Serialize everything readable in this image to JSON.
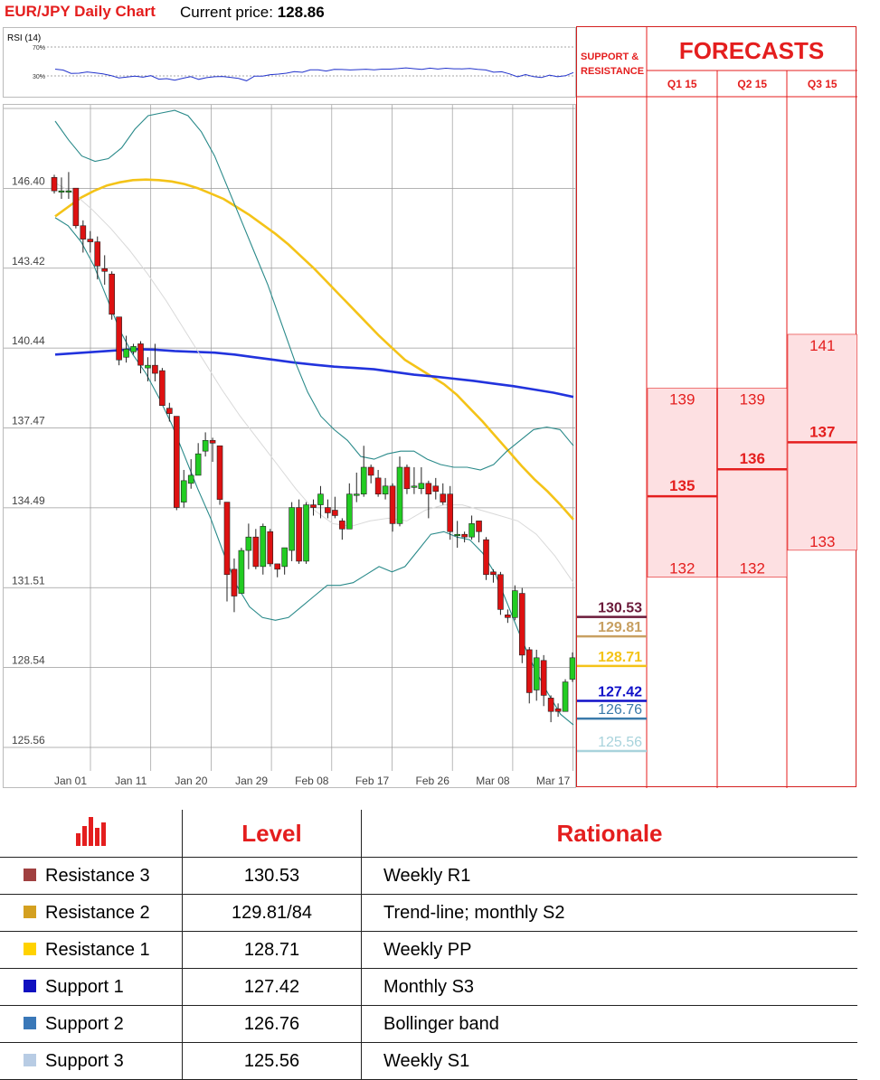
{
  "header": {
    "title": "EUR/JPY Daily Chart",
    "price_label": "Current price:",
    "price_value": "128.86"
  },
  "rsi": {
    "label": "RSI (14)",
    "levels": [
      "70%",
      "30%"
    ],
    "values": [
      39.4,
      38.1,
      33.5,
      33.8,
      35.5,
      34.3,
      32.8,
      30.5,
      27.3,
      28.5,
      29.6,
      28.2,
      30.4,
      25.5,
      26.2,
      24.1,
      26.8,
      29.0,
      25.3,
      27.6,
      28.9,
      29.3,
      28.0,
      26.5,
      23.3,
      29.8,
      29.6,
      31.8,
      32.5,
      33.8,
      35.9,
      35.0,
      38.4,
      38.4,
      36.7,
      39.1,
      38.9,
      38.2,
      38.8,
      39.2,
      38.4,
      39.4,
      39.4,
      40.1,
      41.1,
      40.0,
      39.0,
      40.7,
      39.5,
      40.6,
      39.9,
      39.7,
      40.3,
      39.1,
      38.2,
      35.1,
      35.7,
      32.8,
      28.7,
      31.9,
      29.0,
      27.8,
      31.1,
      28.9,
      30.2,
      34.6
    ]
  },
  "chart_data": {
    "type": "candlestick",
    "ylim": [
      125.56,
      149.37
    ],
    "y_ticks": [
      "149.37",
      "146.40",
      "143.42",
      "140.44",
      "137.47",
      "134.49",
      "131.51",
      "128.54",
      "125.56"
    ],
    "x_ticks": [
      "Jan 01",
      "Jan 11",
      "Jan 20",
      "Jan 29",
      "Feb 08",
      "Feb 17",
      "Feb 26",
      "Mar 08",
      "Mar 17"
    ],
    "grid": true,
    "candles": [
      [
        146.8,
        146.3,
        146.9,
        146.2
      ],
      [
        146.3,
        146.3,
        146.8,
        146.0
      ],
      [
        146.3,
        146.3,
        147.0,
        146.0
      ],
      [
        146.4,
        145.0,
        146.4,
        144.9
      ],
      [
        145.0,
        144.5,
        145.2,
        144.0
      ],
      [
        144.5,
        144.4,
        144.8,
        144.0
      ],
      [
        144.4,
        143.5,
        144.6,
        143.0
      ],
      [
        143.4,
        143.3,
        143.9,
        142.8
      ],
      [
        143.2,
        141.7,
        143.3,
        141.5
      ],
      [
        141.6,
        140.0,
        141.6,
        139.8
      ],
      [
        140.1,
        140.4,
        140.9,
        139.9
      ],
      [
        140.3,
        140.5,
        140.6,
        140.2
      ],
      [
        140.6,
        139.8,
        140.7,
        139.5
      ],
      [
        139.7,
        139.8,
        140.1,
        139.2
      ],
      [
        139.8,
        139.5,
        140.6,
        139.2
      ],
      [
        139.6,
        138.3,
        139.7,
        138.3
      ],
      [
        138.2,
        138.0,
        138.4,
        137.7
      ],
      [
        137.9,
        134.5,
        137.9,
        134.4
      ],
      [
        134.7,
        135.5,
        135.9,
        134.5
      ],
      [
        135.4,
        135.7,
        136.3,
        135.2
      ],
      [
        135.7,
        136.5,
        136.9,
        135.7
      ],
      [
        136.6,
        137.0,
        137.3,
        136.4
      ],
      [
        137.0,
        136.9,
        137.1,
        136.2
      ],
      [
        136.8,
        134.8,
        136.8,
        134.6
      ],
      [
        134.7,
        132.0,
        134.7,
        131.0
      ],
      [
        132.2,
        131.2,
        132.6,
        130.6
      ],
      [
        131.3,
        132.9,
        133.0,
        131.3
      ],
      [
        132.9,
        133.4,
        133.9,
        132.2
      ],
      [
        133.4,
        132.3,
        133.7,
        132.2
      ],
      [
        132.3,
        133.8,
        133.9,
        132.0
      ],
      [
        133.6,
        132.4,
        133.7,
        132.3
      ],
      [
        132.4,
        132.2,
        132.4,
        131.9
      ],
      [
        132.3,
        133.0,
        133.0,
        132.0
      ],
      [
        132.9,
        134.5,
        134.7,
        132.5
      ],
      [
        134.5,
        132.5,
        134.8,
        132.4
      ],
      [
        132.5,
        134.6,
        134.7,
        132.4
      ],
      [
        134.6,
        134.5,
        134.8,
        134.2
      ],
      [
        134.6,
        135.0,
        135.3,
        134.1
      ],
      [
        134.5,
        134.3,
        134.8,
        134.1
      ],
      [
        134.4,
        134.2,
        134.9,
        134.1
      ],
      [
        134.0,
        133.7,
        134.1,
        133.3
      ],
      [
        133.7,
        135.0,
        135.4,
        133.7
      ],
      [
        135.0,
        135.0,
        135.8,
        134.7
      ],
      [
        135.0,
        136.0,
        136.8,
        134.9
      ],
      [
        136.0,
        135.7,
        136.1,
        135.4
      ],
      [
        135.6,
        135.0,
        135.9,
        134.9
      ],
      [
        135.0,
        135.3,
        135.6,
        134.8
      ],
      [
        135.3,
        133.9,
        135.4,
        133.6
      ],
      [
        133.9,
        136.0,
        136.4,
        133.8
      ],
      [
        136.0,
        135.2,
        136.1,
        135.0
      ],
      [
        135.3,
        135.3,
        136.0,
        135.0
      ],
      [
        135.2,
        135.4,
        136.0,
        135.0
      ],
      [
        135.4,
        135.0,
        135.5,
        134.1
      ],
      [
        135.3,
        135.1,
        135.6,
        134.8
      ],
      [
        135.0,
        134.7,
        135.4,
        134.6
      ],
      [
        135.0,
        133.6,
        135.3,
        133.3
      ],
      [
        133.5,
        133.5,
        134.0,
        133.0
      ],
      [
        133.5,
        133.4,
        133.6,
        133.2
      ],
      [
        133.4,
        133.9,
        134.2,
        133.3
      ],
      [
        134.0,
        133.6,
        134.0,
        133.2
      ],
      [
        133.3,
        132.0,
        133.4,
        131.8
      ],
      [
        132.1,
        132.0,
        132.2,
        131.7
      ],
      [
        132.0,
        130.7,
        132.1,
        130.5
      ],
      [
        130.5,
        130.4,
        130.7,
        130.2
      ],
      [
        130.4,
        131.4,
        131.6,
        130.3
      ],
      [
        131.3,
        129.0,
        131.5,
        128.7
      ],
      [
        129.2,
        127.6,
        129.3,
        127.2
      ],
      [
        127.7,
        128.9,
        129.2,
        127.3
      ],
      [
        128.8,
        127.5,
        129.0,
        127.1
      ],
      [
        127.4,
        126.9,
        127.5,
        126.5
      ],
      [
        127.0,
        126.9,
        127.2,
        126.7
      ],
      [
        126.9,
        128.0,
        128.1,
        126.9
      ],
      [
        128.1,
        128.9,
        129.1,
        128.0
      ]
    ],
    "series": [
      {
        "name": "",
        "color": "#f4c318",
        "values": [
          145.35,
          145.7,
          146.05,
          146.3,
          146.5,
          146.62,
          146.7,
          146.72,
          146.7,
          146.65,
          146.55,
          146.4,
          146.2,
          146.0,
          145.7,
          145.4,
          145.05,
          144.7,
          144.3,
          143.85,
          143.4,
          142.9,
          142.4,
          141.9,
          141.4,
          140.9,
          140.45,
          140.0,
          139.7,
          139.4,
          139.1,
          138.7,
          138.2,
          137.7,
          137.15,
          136.6,
          136.05,
          135.55,
          135.1,
          134.6,
          134.05
        ]
      },
      {
        "name": "",
        "color": "#2233dd",
        "values": [
          140.2,
          140.25,
          140.3,
          140.35,
          140.4,
          140.38,
          140.33,
          140.3,
          140.27,
          140.2,
          140.1,
          140.0,
          139.9,
          139.82,
          139.75,
          139.7,
          139.65,
          139.55,
          139.45,
          139.38,
          139.3,
          139.22,
          139.12,
          139.02,
          138.9,
          138.78,
          138.62
        ]
      },
      {
        "name": "",
        "color": "#2a8a8a",
        "values": [
          148.9,
          148.2,
          147.6,
          147.4,
          147.5,
          147.9,
          148.6,
          149.1,
          149.2,
          149.3,
          149.1,
          148.5,
          147.6,
          146.4,
          145.2,
          144.0,
          142.8,
          141.4,
          140.0,
          138.8,
          137.9,
          137.4,
          137.0,
          136.4,
          136.3,
          136.5,
          136.6,
          136.6,
          136.3,
          136.1,
          136.0,
          136.0,
          135.9,
          136.1,
          136.6,
          137.0,
          137.4,
          137.5,
          137.4,
          136.8
        ]
      },
      {
        "name": "",
        "color": "#2a8a8a",
        "values": [
          145.3,
          145.0,
          144.4,
          143.5,
          142.3,
          141.1,
          140.2,
          139.5,
          138.6,
          137.6,
          136.4,
          135.2,
          134.1,
          132.8,
          131.6,
          130.8,
          130.4,
          130.3,
          130.4,
          130.8,
          131.2,
          131.6,
          131.6,
          131.7,
          132.0,
          132.3,
          132.1,
          132.3,
          132.9,
          133.5,
          133.6,
          133.4,
          133.3,
          132.8,
          132.0,
          130.8,
          129.6,
          128.5,
          127.6,
          126.8,
          126.4
        ]
      },
      {
        "name": "",
        "color": "#d9d9d9",
        "values": [
          146.6,
          146.2,
          145.6,
          144.9,
          144.1,
          143.2,
          142.2,
          141.1,
          140.0,
          138.9,
          137.9,
          137.0,
          136.1,
          135.2,
          134.4,
          133.9,
          133.8,
          134.0,
          134.1,
          134.0,
          134.4,
          134.6,
          134.6,
          134.4,
          134.2,
          134.0,
          133.5,
          132.7,
          131.7
        ]
      }
    ],
    "levels": [
      {
        "name": "Resistance 3",
        "value": "130.53",
        "color": "#6b1a3a"
      },
      {
        "name": "Resistance 2",
        "value": "129.81",
        "color": "#c8a062"
      },
      {
        "name": "Resistance 1",
        "value": "128.71",
        "color": "#f4c318"
      },
      {
        "name": "Support 1",
        "value": "127.42",
        "color": "#1010c8"
      },
      {
        "name": "Support 2",
        "value": "126.76",
        "color": "#3a7aaa"
      },
      {
        "name": "Support 3",
        "value": "125.56",
        "color": "#a8d3dc"
      }
    ]
  },
  "forecasts": {
    "sr_header": "SUPPORT & RESISTANCE",
    "title": "FORECASTS",
    "quarters": [
      {
        "label": "Q1 15",
        "high": "139",
        "mid": "135",
        "low": "132"
      },
      {
        "label": "Q2 15",
        "high": "139",
        "mid": "136",
        "low": "132"
      },
      {
        "label": "Q3 15",
        "high": "141",
        "mid": "137",
        "low": "133"
      }
    ]
  },
  "table": {
    "headers": [
      "Level",
      "Rationale"
    ],
    "rows": [
      {
        "name": "Resistance 3",
        "level": "130.53",
        "rationale": "Weekly R1",
        "color": "#a04040"
      },
      {
        "name": "Resistance 2",
        "level": "129.81/84",
        "rationale": "Trend-line; monthly S2",
        "color": "#d4a020"
      },
      {
        "name": "Resistance 1",
        "level": "128.71",
        "rationale": "Weekly PP",
        "color": "#ffd200"
      },
      {
        "name": "Support 1",
        "level": "127.42",
        "rationale": "Monthly S3",
        "color": "#1010c0"
      },
      {
        "name": "Support 2",
        "level": "126.76",
        "rationale": "Bollinger band",
        "color": "#3a78b8"
      },
      {
        "name": "Support 3",
        "level": "125.56",
        "rationale": "Weekly S1",
        "color": "#b8cce4"
      }
    ]
  },
  "colors": {
    "accent_red": "#e41e1e",
    "bull_candle": "#22cc22",
    "bear_candle": "#dd1111",
    "forecast_fill": "#fde0e2"
  }
}
